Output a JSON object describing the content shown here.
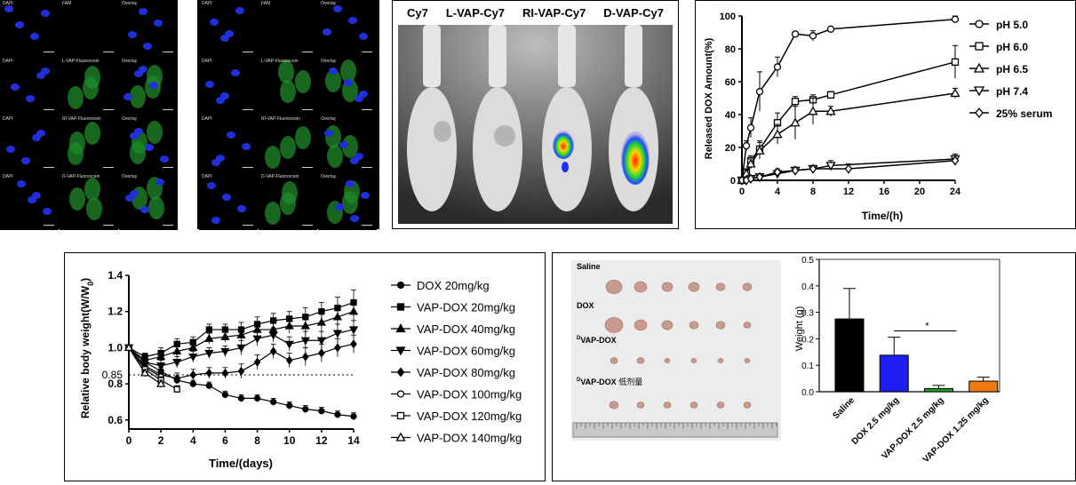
{
  "micro": {
    "left_grid": [
      [
        "DAPI",
        "FAM",
        "Overlay"
      ],
      [
        "DAPI",
        "L-VAP-Fluorescein",
        "Overlay"
      ],
      [
        "DAPI",
        "RI-VAP-Fluorescein",
        "Overlay"
      ],
      [
        "DAPI",
        "D-VAP-Fluorescein",
        "Overlay"
      ]
    ],
    "right_grid": [
      [
        "DAPI",
        "FAM",
        "Overlay"
      ],
      [
        "DAPI",
        "L-VAP-Fluorescein",
        "Overlay"
      ],
      [
        "DAPI",
        "RI-VAP-Fluorescein",
        "Overlay"
      ],
      [
        "DAPI",
        "D-VAP-Fluorescein",
        "Overlay"
      ]
    ]
  },
  "imaging": {
    "labels": [
      "Cy7",
      "L-VAP-Cy7",
      "RI-VAP-Cy7",
      "D-VAP-Cy7"
    ]
  },
  "tumor_photo": {
    "rows": [
      "Saline",
      "DOX",
      "VAP-DOX",
      "VAP-DOX"
    ],
    "row_prefix": [
      "",
      "",
      "D",
      "D"
    ],
    "row_suffix": [
      "",
      "",
      "",
      "低剂量"
    ],
    "tumor_counts": [
      6,
      6,
      6,
      6
    ]
  },
  "chart_data": [
    {
      "type": "line",
      "xlabel": "Time/(h)",
      "ylabel": "Released DOX Amount(%)",
      "xlim": [
        0,
        24
      ],
      "ylim": [
        0,
        100
      ],
      "xticks": [
        "0",
        "4",
        "8",
        "12",
        "16",
        "20",
        "24"
      ],
      "yticks": [
        "0",
        "20",
        "40",
        "60",
        "80",
        "100"
      ],
      "legend_position": "right",
      "series": [
        {
          "name": "pH 5.0",
          "marker": "circle",
          "x": [
            0,
            0.5,
            1,
            2,
            4,
            6,
            8,
            10,
            24
          ],
          "y": [
            0,
            21,
            32,
            54,
            69,
            89,
            88,
            92,
            98
          ],
          "err": [
            0,
            3,
            6,
            12,
            6,
            0,
            3,
            0,
            2
          ]
        },
        {
          "name": "pH 6.0",
          "marker": "square",
          "x": [
            0,
            0.5,
            1,
            2,
            4,
            6,
            8,
            10,
            24
          ],
          "y": [
            0,
            5,
            12,
            19,
            35,
            48,
            49,
            52,
            72
          ],
          "err": [
            0,
            2,
            3,
            5,
            6,
            3,
            3,
            2,
            10
          ]
        },
        {
          "name": "pH 6.5",
          "marker": "triangle",
          "x": [
            0,
            0.5,
            1,
            2,
            4,
            6,
            8,
            10,
            24
          ],
          "y": [
            0,
            4,
            10,
            18,
            28,
            35,
            42,
            42,
            53
          ],
          "err": [
            0,
            2,
            3,
            5,
            6,
            10,
            8,
            3,
            3
          ]
        },
        {
          "name": "pH 7.4",
          "marker": "triangle-down",
          "x": [
            0,
            0.5,
            1,
            2,
            4,
            6,
            8,
            10,
            24
          ],
          "y": [
            0,
            0,
            1,
            2,
            4,
            6,
            7,
            9,
            13
          ],
          "err": [
            0,
            0,
            1,
            1,
            2,
            2,
            2,
            3,
            3
          ]
        },
        {
          "name": "25% serum",
          "marker": "diamond",
          "x": [
            0,
            0.5,
            1,
            2,
            4,
            6,
            8,
            12,
            24
          ],
          "y": [
            0,
            0,
            1,
            2,
            5,
            6,
            7,
            7,
            12
          ],
          "err": [
            0,
            0,
            1,
            1,
            2,
            2,
            2,
            3,
            3
          ]
        }
      ]
    },
    {
      "type": "line",
      "xlabel": "Time/(days)",
      "ylabel_main": "Relative body weight(W/W",
      "ylabel_sub": "0",
      "ylabel_close": ")",
      "xlim": [
        0,
        14
      ],
      "ylim": [
        0.55,
        1.4
      ],
      "xticks": [
        "0",
        "2",
        "4",
        "6",
        "8",
        "10",
        "12",
        "14"
      ],
      "yticks": [
        "0.6",
        "0.8",
        "1.0",
        "1.2",
        "1.4"
      ],
      "reference_line": 0.85,
      "reference_label": "0.85",
      "legend_position": "right",
      "series": [
        {
          "name": "DOX 20mg/kg",
          "marker": "circle-filled",
          "x": [
            0,
            1,
            2,
            3,
            4,
            5,
            6,
            7,
            8,
            9,
            10,
            11,
            12,
            13,
            14
          ],
          "y": [
            1.0,
            0.92,
            0.87,
            0.82,
            0.8,
            0.79,
            0.74,
            0.72,
            0.72,
            0.7,
            0.68,
            0.66,
            0.65,
            0.63,
            0.62
          ],
          "err": [
            0,
            0.02,
            0.02,
            0.02,
            0.02,
            0.02,
            0.02,
            0.02,
            0.02,
            0.02,
            0.02,
            0.02,
            0.02,
            0.02,
            0.02
          ]
        },
        {
          "name": "VAP-DOX 20mg/kg",
          "marker": "square-filled",
          "x": [
            0,
            1,
            2,
            3,
            4,
            5,
            6,
            7,
            8,
            9,
            10,
            11,
            12,
            13,
            14
          ],
          "y": [
            1.0,
            0.95,
            0.97,
            1.02,
            1.03,
            1.1,
            1.1,
            1.1,
            1.13,
            1.15,
            1.16,
            1.17,
            1.2,
            1.22,
            1.25
          ],
          "err": [
            0,
            0.02,
            0.03,
            0.03,
            0.03,
            0.03,
            0.03,
            0.04,
            0.04,
            0.04,
            0.04,
            0.05,
            0.05,
            0.06,
            0.07
          ]
        },
        {
          "name": "VAP-DOX 40mg/kg",
          "marker": "triangle-filled",
          "x": [
            0,
            1,
            2,
            3,
            4,
            5,
            6,
            7,
            8,
            9,
            10,
            11,
            12,
            13,
            14
          ],
          "y": [
            1.0,
            0.93,
            0.95,
            0.98,
            1.0,
            1.05,
            1.06,
            1.07,
            1.1,
            1.1,
            1.12,
            1.12,
            1.14,
            1.17,
            1.2
          ],
          "err": [
            0,
            0.02,
            0.03,
            0.03,
            0.03,
            0.03,
            0.03,
            0.04,
            0.04,
            0.04,
            0.04,
            0.05,
            0.05,
            0.05,
            0.05
          ]
        },
        {
          "name": "VAP-DOX 60mg/kg",
          "marker": "triangle-down-filled",
          "x": [
            0,
            1,
            2,
            3,
            4,
            5,
            6,
            7,
            8,
            9,
            10,
            11,
            12,
            13,
            14
          ],
          "y": [
            1.0,
            0.92,
            0.9,
            0.92,
            0.95,
            0.97,
            0.98,
            1.0,
            1.05,
            1.07,
            1.02,
            1.04,
            1.04,
            1.08,
            1.1
          ],
          "err": [
            0,
            0.02,
            0.03,
            0.03,
            0.03,
            0.03,
            0.03,
            0.04,
            0.04,
            0.04,
            0.04,
            0.05,
            0.05,
            0.05,
            0.05
          ]
        },
        {
          "name": "VAP-DOX 80mg/kg",
          "marker": "diamond-filled",
          "x": [
            0,
            1,
            2,
            3,
            4,
            5,
            6,
            7,
            8,
            9,
            10,
            11,
            12,
            13,
            14
          ],
          "y": [
            1.0,
            0.9,
            0.85,
            0.83,
            0.85,
            0.86,
            0.86,
            0.87,
            0.92,
            0.98,
            0.93,
            0.95,
            0.97,
            1.0,
            1.02
          ],
          "err": [
            0,
            0.02,
            0.03,
            0.03,
            0.03,
            0.03,
            0.03,
            0.04,
            0.04,
            0.04,
            0.04,
            0.05,
            0.05,
            0.05,
            0.05
          ]
        },
        {
          "name": "VAP-DOX 100mg/kg",
          "marker": "circle-open",
          "x": [
            0,
            1,
            2
          ],
          "y": [
            1.0,
            0.89,
            0.84
          ],
          "err": [
            0,
            0.02,
            0.02
          ]
        },
        {
          "name": "VAP-DOX 120mg/kg",
          "marker": "square-open",
          "x": [
            0,
            1,
            2,
            3
          ],
          "y": [
            1.0,
            0.88,
            0.82,
            0.77
          ],
          "err": [
            0,
            0.02,
            0.02,
            0.02
          ]
        },
        {
          "name": "VAP-DOX 140mg/kg",
          "marker": "triangle-open",
          "x": [
            0,
            1,
            2
          ],
          "y": [
            1.0,
            0.86,
            0.8
          ],
          "err": [
            0,
            0.02,
            0.02
          ]
        }
      ]
    },
    {
      "type": "bar",
      "ylabel": "Weight (g)",
      "ylim": [
        0,
        0.5
      ],
      "yticks": [
        "0.0",
        "0.1",
        "0.2",
        "0.3",
        "0.4",
        "0.5"
      ],
      "categories": [
        "Saline",
        "DOX 2.5 mg/kg",
        "VAP-DOX 2.5 mg/kg",
        "VAP-DOX 1.25 mg/kg"
      ],
      "values": [
        0.275,
        0.138,
        0.012,
        0.04
      ],
      "errors": [
        0.115,
        0.068,
        0.012,
        0.015
      ],
      "colors": [
        "#000000",
        "#1f1ff5",
        "#1aa31a",
        "#f07a10"
      ],
      "annotation": "*"
    }
  ]
}
